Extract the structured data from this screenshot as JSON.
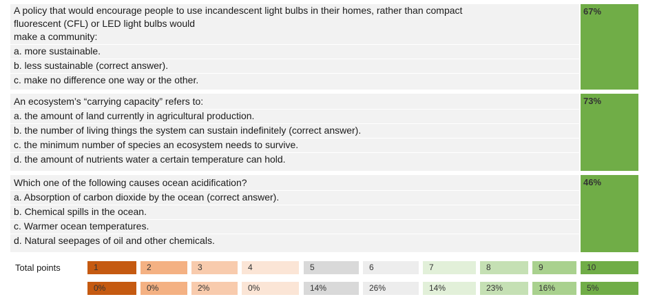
{
  "questions": [
    {
      "lines": [
        "A policy that would encourage people to use incandescent light bulbs in their homes, rather than compact",
        "fluorescent (CFL) or LED light bulbs would",
        "make a community:",
        "a. more sustainable.",
        "b. less sustainable (correct answer).",
        "c. make no difference one way or the other."
      ],
      "percent": "67%"
    },
    {
      "lines": [
        "An ecosystem’s “carrying capacity” refers to:",
        "a. the amount of land currently in agricultural production.",
        "b. the number of living things the system can sustain indefinitely (correct answer).",
        "c. the minimum number of species an ecosystem needs to survive.",
        "d. the amount of nutrients water a certain temperature can hold."
      ],
      "percent": "73%"
    },
    {
      "lines": [
        "Which one of the following causes ocean acidification?",
        "a. Absorption of carbon dioxide by the ocean (correct answer).",
        "b. Chemical spills in the ocean.",
        "c. Warmer ocean temperatures.",
        "d. Natural seepages of oil and other chemicals."
      ],
      "percent": "46%"
    }
  ],
  "scores": {
    "label": "Total points",
    "points": [
      "1",
      "2",
      "3",
      "4",
      "5",
      "6",
      "7",
      "8",
      "9",
      "10"
    ],
    "percents": [
      "0%",
      "0%",
      "2%",
      "0%",
      "14%",
      "26%",
      "14%",
      "23%",
      "16%",
      "5%"
    ],
    "colors": [
      "#c55a11",
      "#f4b183",
      "#f8cbad",
      "#fbe5d6",
      "#d9d9d9",
      "#ededed",
      "#e2f0d9",
      "#c5e0b4",
      "#a9d18e",
      "#70ad47"
    ]
  }
}
